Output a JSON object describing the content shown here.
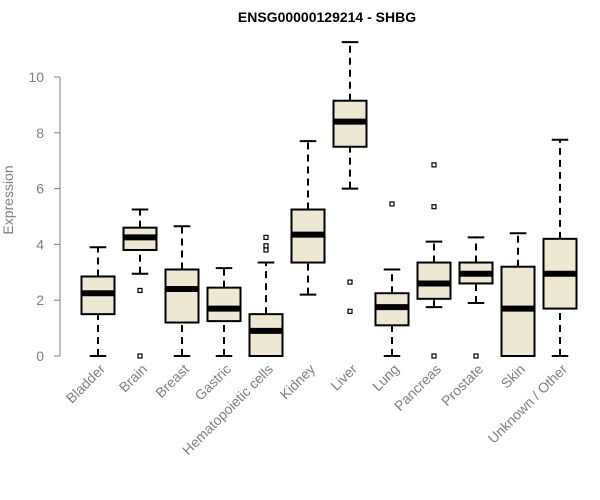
{
  "chart_data": {
    "type": "boxplot",
    "title": "ENSG00000129214 - SHBG",
    "xlabel": "",
    "ylabel": "Expression",
    "ylim": [
      0,
      11
    ],
    "yticks": [
      "0",
      "2",
      "4",
      "6",
      "8",
      "10"
    ],
    "categories": [
      "Bladder",
      "Brain",
      "Breast",
      "Gastric",
      "Hematopoietic cells",
      "Kidney",
      "Liver",
      "Lung",
      "Pancreas",
      "Prostate",
      "Skin",
      "Unknown / Other"
    ],
    "boxes": [
      {
        "min": 0.0,
        "q1": 1.5,
        "median": 2.25,
        "q3": 2.85,
        "max": 3.9,
        "outliers": []
      },
      {
        "min": 2.95,
        "q1": 3.8,
        "median": 4.25,
        "q3": 4.6,
        "max": 5.25,
        "outliers": [
          2.35,
          0.0
        ]
      },
      {
        "min": 0.0,
        "q1": 1.2,
        "median": 2.4,
        "q3": 3.1,
        "max": 4.65,
        "outliers": []
      },
      {
        "min": 0.0,
        "q1": 1.25,
        "median": 1.7,
        "q3": 2.45,
        "max": 3.15,
        "outliers": []
      },
      {
        "min": 0.0,
        "q1": 0.0,
        "median": 0.9,
        "q3": 1.5,
        "max": 3.35,
        "outliers": [
          3.8,
          3.95,
          4.25
        ]
      },
      {
        "min": 2.2,
        "q1": 3.35,
        "median": 4.35,
        "q3": 5.25,
        "max": 7.7,
        "outliers": []
      },
      {
        "min": 6.0,
        "q1": 7.5,
        "median": 8.4,
        "q3": 9.15,
        "max": 11.25,
        "outliers": [
          2.65,
          1.6
        ]
      },
      {
        "min": 0.0,
        "q1": 1.1,
        "median": 1.75,
        "q3": 2.25,
        "max": 3.1,
        "outliers": [
          5.45
        ]
      },
      {
        "min": 1.75,
        "q1": 2.05,
        "median": 2.6,
        "q3": 3.35,
        "max": 4.1,
        "outliers": [
          5.35,
          6.85,
          0.0
        ]
      },
      {
        "min": 1.9,
        "q1": 2.6,
        "median": 2.95,
        "q3": 3.35,
        "max": 4.25,
        "outliers": [
          0.0
        ]
      },
      {
        "min": 0.0,
        "q1": 0.0,
        "median": 1.7,
        "q3": 3.2,
        "max": 4.4,
        "outliers": []
      },
      {
        "min": 0.0,
        "q1": 1.7,
        "median": 2.95,
        "q3": 4.2,
        "max": 7.75,
        "outliers": []
      }
    ],
    "colors": {
      "box_fill": "#EEE8D3",
      "box_stroke": "#000000",
      "axis": "#808080",
      "text_gray": "#808080"
    },
    "grid": false,
    "legend": "none"
  }
}
